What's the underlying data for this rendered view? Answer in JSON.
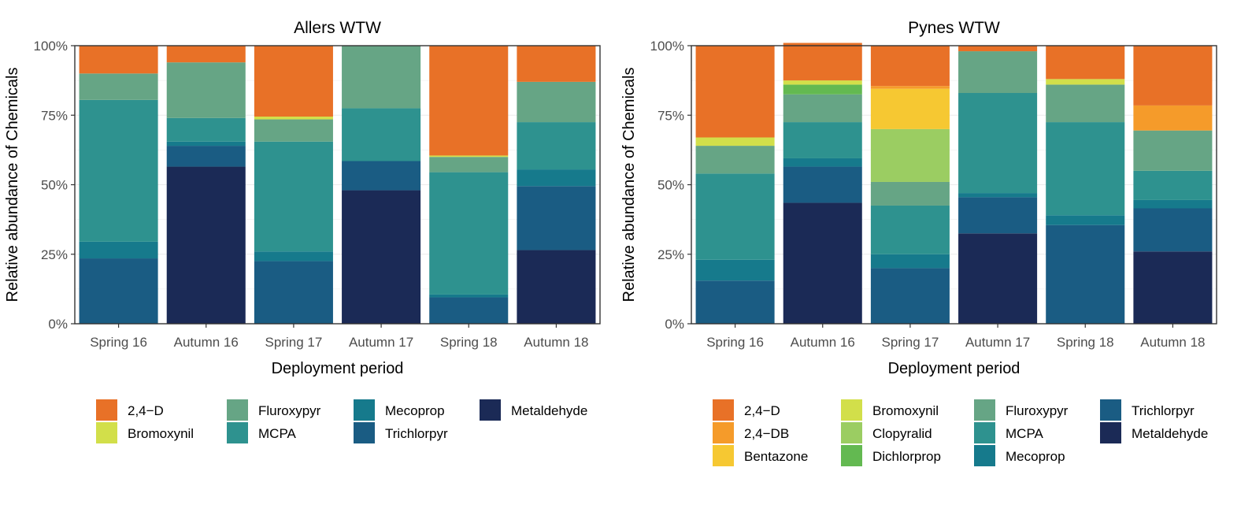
{
  "colors": {
    "2,4-D": "#E87127",
    "2,4-DB": "#F59B2A",
    "Bentazone": "#F6C832",
    "Bromoxynil": "#D2DF4A",
    "Clopyralid": "#9BCD62",
    "Dichlorprop": "#63B951",
    "Fluroxypyr": "#66A585",
    "MCPA": "#2E928F",
    "Mecoprop": "#167A8C",
    "Trichlorpyr": "#1A5C83",
    "Metaldehyde": "#1B2A56"
  },
  "chart_data": [
    {
      "type": "bar",
      "stacked": true,
      "title": "Allers WTW",
      "xlabel": "Deployment period",
      "ylabel": "Relative abundance of Chemicals",
      "yticks": [
        "0%",
        "25%",
        "50%",
        "75%",
        "100%"
      ],
      "ylim": [
        0,
        100
      ],
      "categories": [
        "Spring 16",
        "Autumn 16",
        "Spring 17",
        "Autumn 17",
        "Spring 18",
        "Autumn 18"
      ],
      "series": [
        {
          "name": "Metaldehyde",
          "values": [
            0,
            56.5,
            0,
            48,
            0,
            26.5
          ]
        },
        {
          "name": "Trichlorpyr",
          "values": [
            23.5,
            7.5,
            22.5,
            10.5,
            9.5,
            23
          ]
        },
        {
          "name": "Mecoprop",
          "values": [
            6,
            1.5,
            3.5,
            0,
            1,
            6
          ]
        },
        {
          "name": "MCPA",
          "values": [
            51,
            8.5,
            39.5,
            19,
            44,
            17
          ]
        },
        {
          "name": "Fluroxypyr",
          "values": [
            9.5,
            20,
            8,
            22.5,
            5.5,
            14.5
          ]
        },
        {
          "name": "Bromoxynil",
          "values": [
            0,
            0,
            1,
            0,
            0.5,
            0
          ]
        },
        {
          "name": "2,4-D",
          "values": [
            10,
            6,
            25.5,
            0,
            39.5,
            13
          ]
        }
      ],
      "legend": {
        "placement": "bottom",
        "items": [
          "2,4−D",
          "Bromoxynil",
          "Fluroxypyr",
          "MCPA",
          "Mecoprop",
          "Trichlorpyr",
          "Metaldehyde"
        ]
      }
    },
    {
      "type": "bar",
      "stacked": true,
      "title": "Pynes WTW",
      "xlabel": "Deployment period",
      "ylabel": "Relative abundance of Chemicals",
      "yticks": [
        "0%",
        "25%",
        "50%",
        "75%",
        "100%"
      ],
      "ylim": [
        0,
        100
      ],
      "categories": [
        "Spring 16",
        "Autumn 16",
        "Spring 17",
        "Autumn 17",
        "Spring 18",
        "Autumn 18"
      ],
      "series": [
        {
          "name": "Metaldehyde",
          "values": [
            0,
            43.5,
            0,
            32.5,
            0,
            26
          ]
        },
        {
          "name": "Trichlorpyr",
          "values": [
            15.5,
            13,
            20,
            13,
            35.5,
            15.5
          ]
        },
        {
          "name": "Mecoprop",
          "values": [
            7.5,
            3,
            5,
            1.5,
            3.5,
            3
          ]
        },
        {
          "name": "MCPA",
          "values": [
            31,
            13,
            17.5,
            36,
            33.5,
            10.5
          ]
        },
        {
          "name": "Fluroxypyr",
          "values": [
            10,
            10,
            8.5,
            15,
            13.5,
            14.5
          ]
        },
        {
          "name": "Dichlorprop",
          "values": [
            0,
            3.5,
            0,
            0,
            0,
            0
          ]
        },
        {
          "name": "Clopyralid",
          "values": [
            0,
            0,
            19,
            0,
            0,
            0
          ]
        },
        {
          "name": "Bromoxynil",
          "values": [
            3,
            1.5,
            0,
            0,
            2,
            0
          ]
        },
        {
          "name": "Bentazone",
          "values": [
            0,
            0,
            14.5,
            0,
            0,
            0
          ]
        },
        {
          "name": "2,4-DB",
          "values": [
            0,
            0,
            1,
            0,
            0,
            9
          ]
        },
        {
          "name": "2,4-D",
          "values": [
            33,
            13.5,
            14.5,
            2,
            12,
            21.5
          ]
        }
      ],
      "legend": {
        "placement": "bottom",
        "items": [
          "2,4−D",
          "2,4−DB",
          "Bentazone",
          "Bromoxynil",
          "Clopyralid",
          "Dichlorprop",
          "Fluroxypyr",
          "MCPA",
          "Mecoprop",
          "Trichlorpyr",
          "Metaldehyde"
        ]
      }
    }
  ]
}
